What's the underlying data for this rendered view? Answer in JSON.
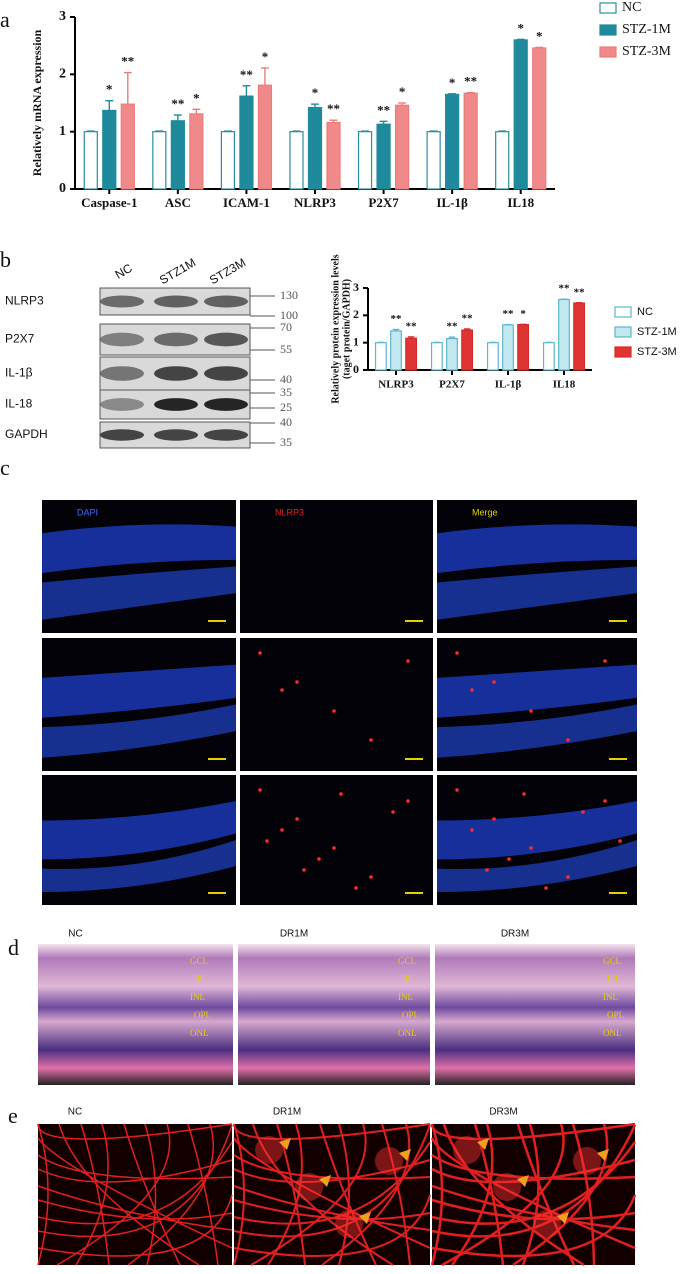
{
  "chart_data": [
    {
      "type": "bar",
      "ylabel": "Relatively mRNA expression",
      "categories": [
        "Caspase-1",
        "ASC",
        "ICAM-1",
        "NLRP3",
        "P2X7",
        "IL-1β",
        "IL18"
      ],
      "ylim": [
        0,
        3
      ],
      "yticks": [
        0,
        1,
        2,
        3
      ],
      "grid": false,
      "series": [
        {
          "name": "NC",
          "color": "#2b8c9e",
          "fill": "#ffffff",
          "values": [
            1,
            1,
            1,
            1,
            1,
            1,
            1
          ],
          "errors": [
            0.01,
            0.01,
            0.01,
            0.01,
            0.01,
            0.01,
            0.01
          ]
        },
        {
          "name": "STZ-1M",
          "color": "#1f8a9b",
          "fill": "#1f8a9b",
          "values": [
            1.37,
            1.19,
            1.62,
            1.42,
            1.13,
            1.65,
            2.6
          ],
          "errors": [
            0.17,
            0.1,
            0.18,
            0.06,
            0.05,
            0.01,
            0.01
          ],
          "marks": [
            "*",
            "**",
            "**",
            "*",
            "**",
            "*",
            "*"
          ]
        },
        {
          "name": "STZ-3M",
          "color": "#ee7b7b",
          "fill": "#f08a8a",
          "values": [
            1.48,
            1.31,
            1.81,
            1.16,
            1.46,
            1.67,
            2.46
          ],
          "errors": [
            0.55,
            0.08,
            0.3,
            0.04,
            0.04,
            0.01,
            0.01
          ],
          "marks": [
            "**",
            "*",
            "*",
            "**",
            "*",
            "**",
            "*"
          ]
        }
      ]
    },
    {
      "type": "bar",
      "ylabel": [
        "Relatively protein expression levels",
        "(taget protein/GAPDH)"
      ],
      "categories": [
        "NLRP3",
        "P2X7",
        "IL-1β",
        "IL18"
      ],
      "ylim": [
        0,
        3
      ],
      "yticks": [
        0,
        1,
        2,
        3
      ],
      "grid": false,
      "series": [
        {
          "name": "NC",
          "color": "#5bb8cc",
          "fill": "#ffffff",
          "values": [
            1,
            1,
            1,
            1
          ],
          "errors": [
            0.01,
            0.01,
            0.01,
            0.01
          ]
        },
        {
          "name": "STZ-1M",
          "color": "#5bb8cc",
          "fill": "#c4e8f0",
          "values": [
            1.43,
            1.15,
            1.65,
            2.58
          ],
          "errors": [
            0.05,
            0.05,
            0.01,
            0.01
          ],
          "marks": [
            "**",
            "**",
            "**",
            "**"
          ]
        },
        {
          "name": "STZ-3M",
          "color": "#d42a2a",
          "fill": "#e03535",
          "values": [
            1.16,
            1.46,
            1.66,
            2.45
          ],
          "errors": [
            0.05,
            0.04,
            0.01,
            0.01
          ],
          "marks": [
            "**",
            "**",
            "*",
            "**"
          ]
        }
      ]
    }
  ],
  "panel_letters": [
    "a",
    "b",
    "c",
    "d",
    "e"
  ],
  "blot": {
    "lanes": [
      "NC",
      "STZ1M",
      "STZ3M"
    ],
    "rows": [
      "NLRP3",
      "P2X7",
      "IL-1β",
      "IL-18",
      "GAPDH"
    ],
    "markers": [
      130,
      100,
      70,
      55,
      40,
      35,
      25,
      40,
      35
    ]
  },
  "if_panel": {
    "channels": [
      "DAPI",
      "NLRP3",
      "Merge"
    ]
  },
  "he_panel": {
    "groups": [
      "NC",
      "DR1M",
      "DR3M"
    ],
    "layers": [
      "GCL",
      "IPL",
      "INL",
      "OPL",
      "ONL"
    ]
  },
  "vessel_panel": {
    "groups": [
      "NC",
      "DR1M",
      "DR3M"
    ]
  }
}
